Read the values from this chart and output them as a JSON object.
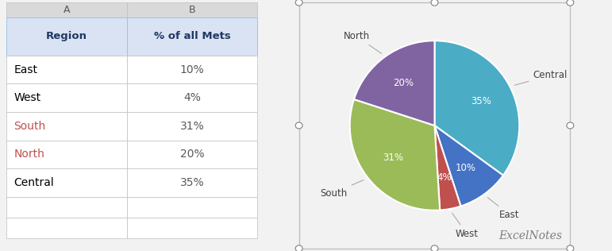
{
  "regions": [
    "East",
    "West",
    "South",
    "North",
    "Central"
  ],
  "values": [
    10,
    4,
    31,
    20,
    35
  ],
  "colors": [
    "#4472C4",
    "#C0504D",
    "#9BBB59",
    "#8064A2",
    "#4BACC6"
  ],
  "table_header_bg": "#DAE3F3",
  "table_header_text": "#1F3864",
  "table_col_a_label": "Region",
  "table_col_b_label": "% of all Mets",
  "col_a_header": "A",
  "col_b_header": "B",
  "excelnotes_text": "ExcelNotes",
  "background_color": "#F2F2F2",
  "chart_bg": "#FFFFFF",
  "pie_order_labels": [
    "Central",
    "East",
    "West",
    "South",
    "North"
  ],
  "pie_order_values": [
    35,
    10,
    4,
    31,
    20
  ],
  "pie_order_colors": [
    "#4BACC6",
    "#4472C4",
    "#C0504D",
    "#9BBB59",
    "#8064A2"
  ],
  "region_text_colors": {
    "East": "#000000",
    "West": "#000000",
    "South": "#C0504D",
    "North": "#C0504D",
    "Central": "#000000"
  }
}
